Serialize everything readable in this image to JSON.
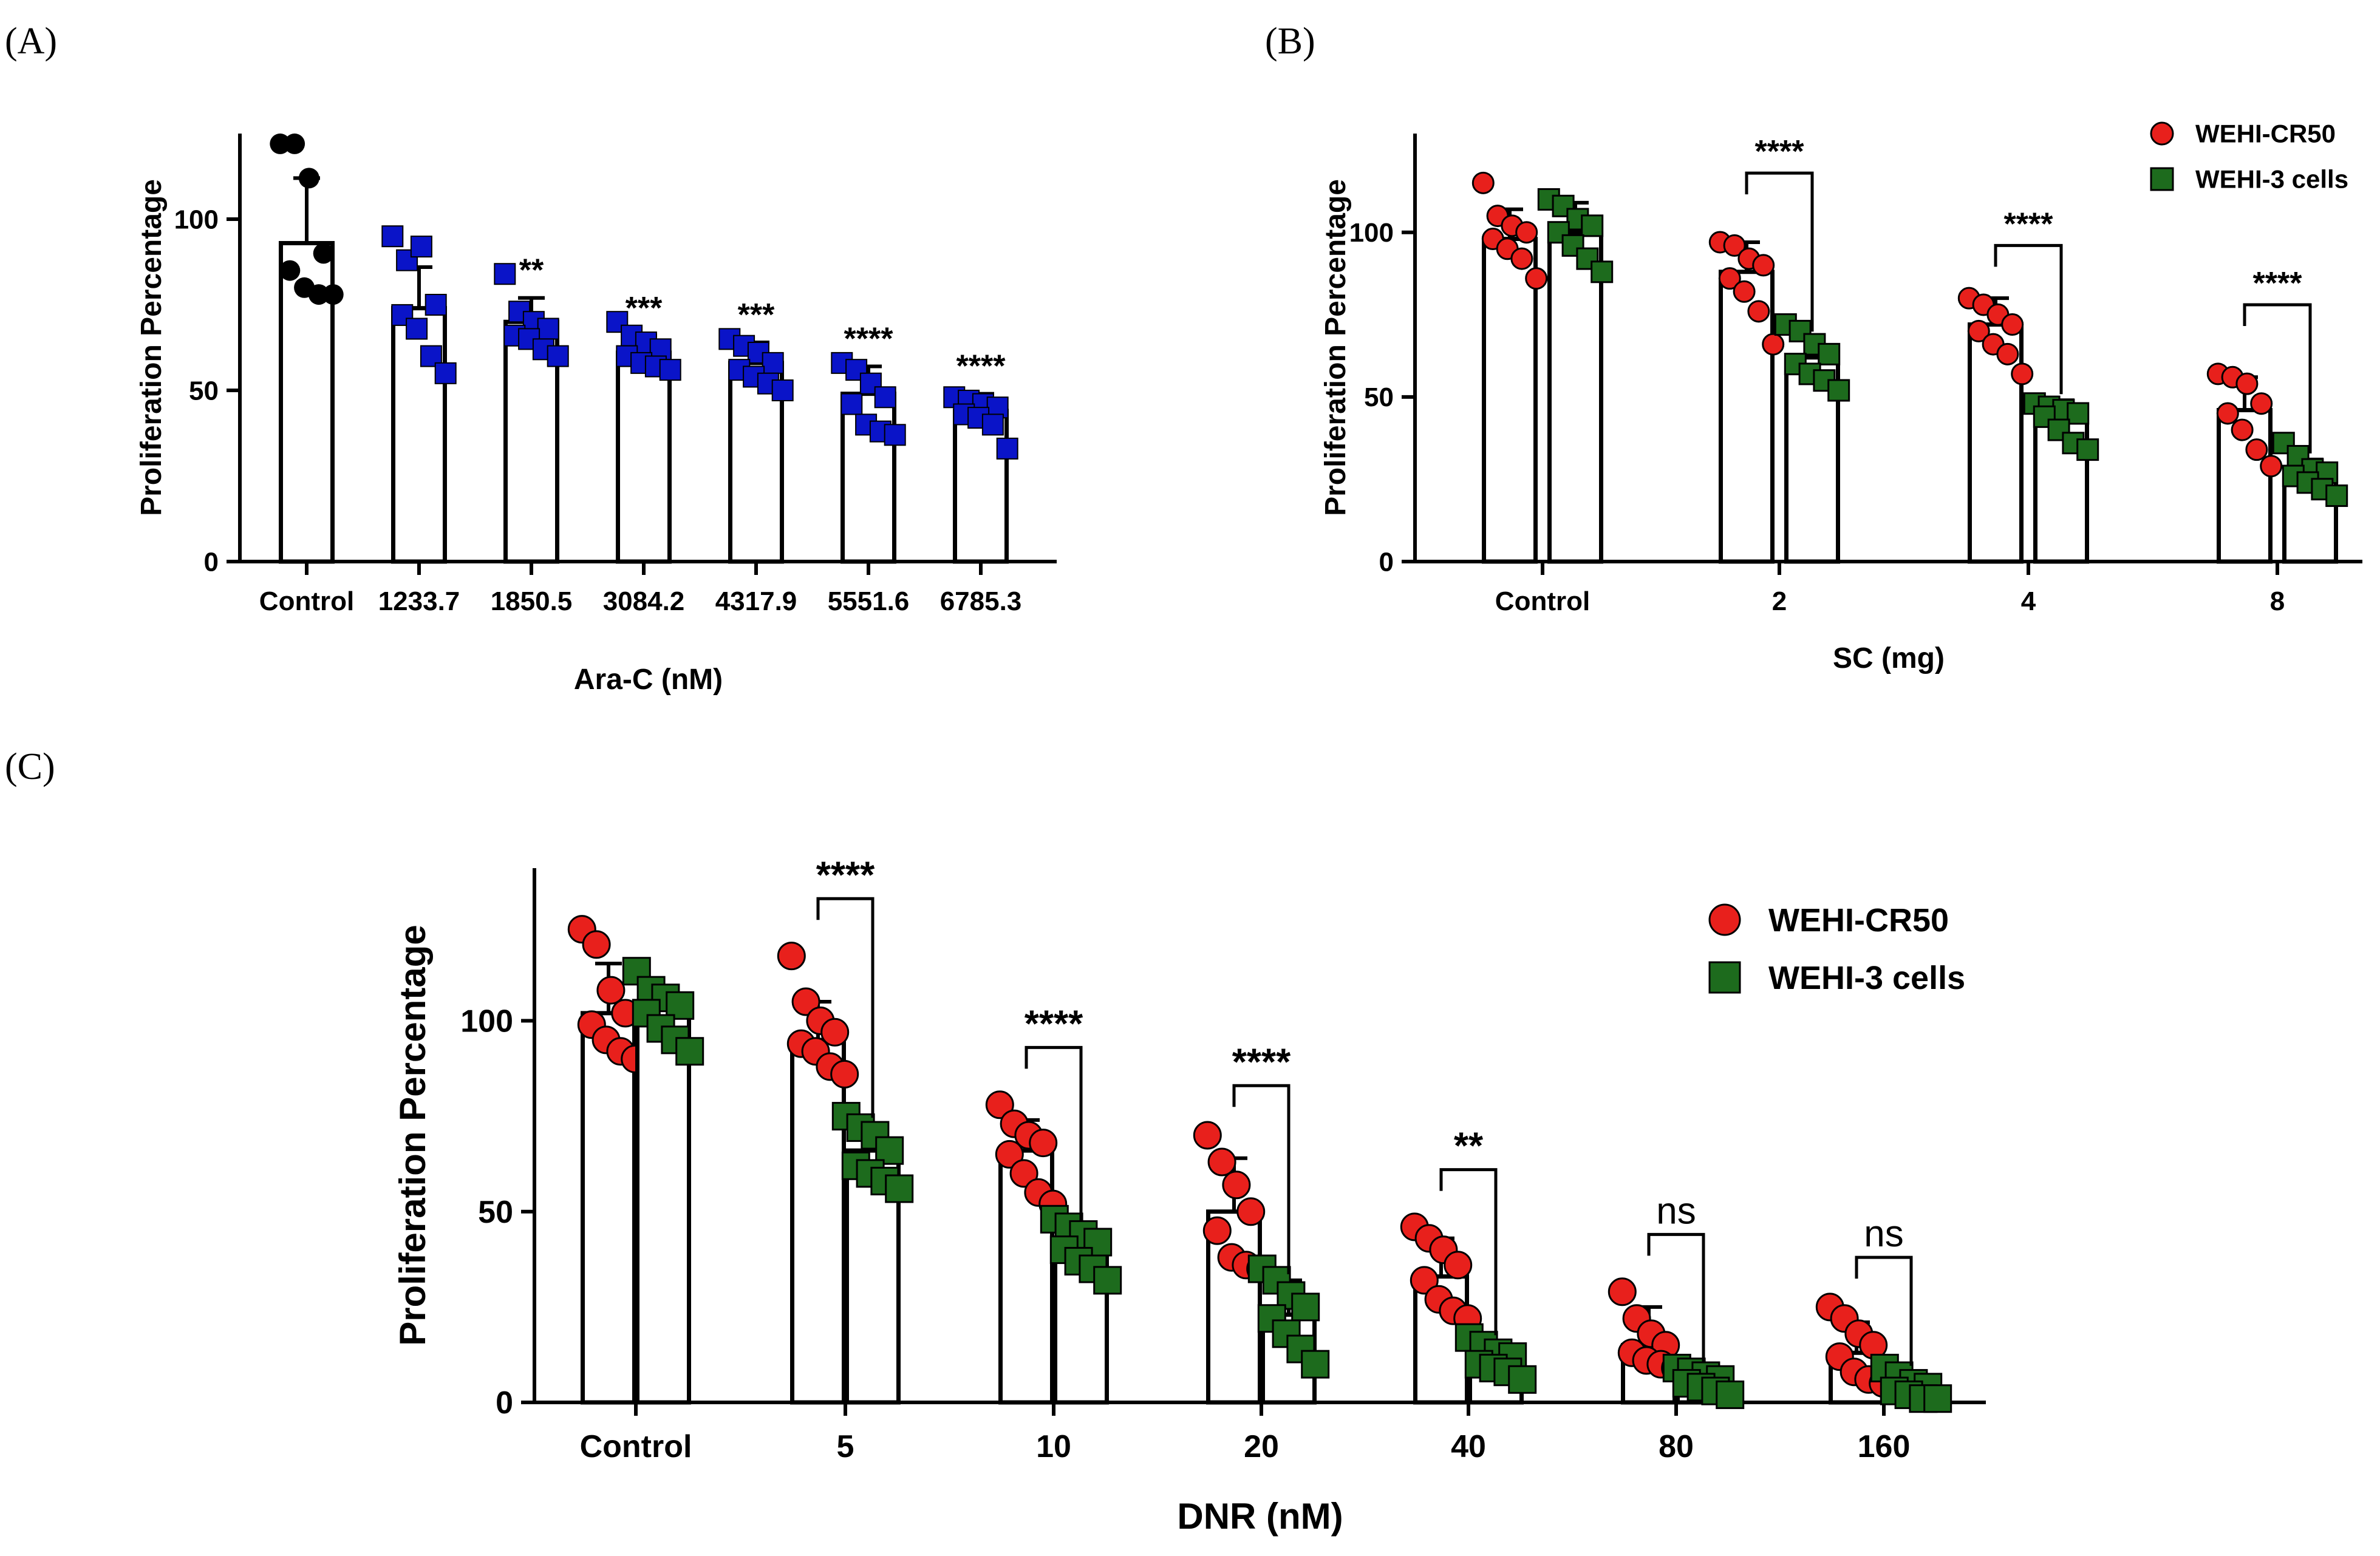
{
  "panel_labels": [
    "(A)",
    "(B)",
    "(C)"
  ],
  "colors": {
    "blue": "#0a14c8",
    "red": "#e8201c",
    "green": "#1d6b1d",
    "black": "#000000"
  },
  "chart_data": [
    {
      "id": "A",
      "type": "bar",
      "title": "",
      "xlabel": "Ara-C (nM)",
      "ylabel": "Proliferation Percentage",
      "ylim": [
        0,
        125
      ],
      "yticks": [
        "0",
        "50",
        "100"
      ],
      "ytick_values": [
        0,
        50,
        100
      ],
      "categories": [
        "Control",
        "1233.7",
        "1850.5",
        "3084.2",
        "4317.9",
        "5551.6",
        "6785.3"
      ],
      "series": [
        {
          "name": "Ara-C",
          "marker": "mixed",
          "values": [
            93,
            74,
            70,
            61,
            58,
            49,
            44
          ],
          "errors": [
            19,
            12,
            7,
            5,
            6,
            8,
            5
          ],
          "points": [
            [
              122,
              122,
              112,
              90,
              85,
              80,
              78,
              78
            ],
            [
              95,
              88,
              92,
              75,
              72,
              68,
              60,
              55
            ],
            [
              84,
              73,
              70,
              68,
              66,
              65,
              62,
              60
            ],
            [
              70,
              66,
              64,
              62,
              60,
              58,
              57,
              56
            ],
            [
              65,
              63,
              61,
              58,
              56,
              54,
              52,
              50
            ],
            [
              58,
              56,
              52,
              48,
              46,
              40,
              38,
              37
            ],
            [
              48,
              47,
              46,
              45,
              43,
              42,
              40,
              33
            ]
          ],
          "significance": [
            "",
            "",
            "**",
            "***",
            "***",
            "****",
            "****"
          ]
        }
      ]
    },
    {
      "id": "B",
      "type": "bar",
      "title": "",
      "xlabel": "SC (mg)",
      "ylabel": "Proliferation Percentage",
      "ylim": [
        0,
        130
      ],
      "yticks": [
        "0",
        "50",
        "100"
      ],
      "ytick_values": [
        0,
        50,
        100
      ],
      "categories": [
        "Control",
        "2",
        "4",
        "8"
      ],
      "legend_position": "top-right",
      "series": [
        {
          "name": "WEHI-CR50",
          "marker": "circle",
          "values": [
            98,
            88,
            72,
            46
          ],
          "errors": [
            9,
            9,
            8,
            10
          ],
          "points": [
            [
              115,
              105,
              102,
              100,
              98,
              95,
              92,
              86
            ],
            [
              97,
              96,
              92,
              90,
              86,
              82,
              76,
              66
            ],
            [
              80,
              78,
              75,
              72,
              70,
              66,
              63,
              57
            ],
            [
              57,
              56,
              54,
              48,
              45,
              40,
              34,
              29
            ]
          ]
        },
        {
          "name": "WEHI-3 cells",
          "marker": "square",
          "values": [
            100,
            62,
            45,
            26
          ],
          "errors": [
            9,
            6,
            4,
            5
          ],
          "points": [
            [
              110,
              108,
              104,
              102,
              100,
              96,
              92,
              88
            ],
            [
              72,
              70,
              66,
              63,
              60,
              57,
              55,
              52
            ],
            [
              48,
              47,
              46,
              45,
              44,
              40,
              36,
              34
            ],
            [
              36,
              32,
              28,
              27,
              26,
              24,
              22,
              20
            ]
          ]
        }
      ],
      "comparisons": [
        {
          "group": 1,
          "label": "****",
          "level": 118
        },
        {
          "group": 2,
          "label": "****",
          "level": 96
        },
        {
          "group": 3,
          "label": "****",
          "level": 78
        }
      ]
    },
    {
      "id": "C",
      "type": "bar",
      "title": "",
      "xlabel": "DNR (nM)",
      "ylabel": "Proliferation Percentage",
      "ylim": [
        0,
        140
      ],
      "yticks": [
        "0",
        "50",
        "100"
      ],
      "ytick_values": [
        0,
        50,
        100
      ],
      "categories": [
        "Control",
        "5",
        "10",
        "20",
        "40",
        "80",
        "160"
      ],
      "legend_position": "top-right",
      "series": [
        {
          "name": "WEHI-CR50",
          "marker": "circle",
          "values": [
            102,
            95,
            66,
            50,
            33,
            15,
            13
          ],
          "errors": [
            13,
            10,
            8,
            14,
            10,
            10,
            8
          ],
          "points": [
            [
              124,
              120,
              108,
              102,
              99,
              95,
              92,
              90
            ],
            [
              117,
              105,
              100,
              97,
              94,
              92,
              88,
              86
            ],
            [
              78,
              73,
              70,
              68,
              65,
              60,
              55,
              52
            ],
            [
              70,
              63,
              57,
              50,
              45,
              38,
              36,
              35
            ],
            [
              46,
              43,
              40,
              36,
              32,
              27,
              24,
              22
            ],
            [
              29,
              22,
              18,
              15,
              13,
              11,
              10,
              9
            ],
            [
              25,
              22,
              18,
              15,
              12,
              8,
              6,
              5
            ]
          ]
        },
        {
          "name": "WEHI-3 cells",
          "marker": "square",
          "values": [
            104,
            66,
            41,
            23,
            12,
            6,
            4
          ],
          "errors": [
            4,
            7,
            5,
            9,
            4,
            3,
            4
          ],
          "points": [
            [
              113,
              108,
              106,
              104,
              102,
              98,
              95,
              92
            ],
            [
              75,
              72,
              70,
              66,
              62,
              60,
              58,
              56
            ],
            [
              48,
              46,
              44,
              42,
              40,
              37,
              35,
              32
            ],
            [
              35,
              32,
              28,
              25,
              22,
              18,
              14,
              10
            ],
            [
              17,
              15,
              13,
              12,
              10,
              9,
              8,
              6
            ],
            [
              9,
              8,
              7,
              6,
              5,
              4,
              3,
              2
            ],
            [
              9,
              7,
              5,
              4,
              3,
              2,
              1,
              1
            ]
          ]
        }
      ],
      "comparisons": [
        {
          "group": 1,
          "label": "****",
          "level": 132
        },
        {
          "group": 2,
          "label": "****",
          "level": 93
        },
        {
          "group": 3,
          "label": "****",
          "level": 83
        },
        {
          "group": 4,
          "label": "**",
          "level": 61
        },
        {
          "group": 5,
          "label": "ns",
          "level": 44
        },
        {
          "group": 6,
          "label": "ns",
          "level": 38
        }
      ]
    }
  ]
}
